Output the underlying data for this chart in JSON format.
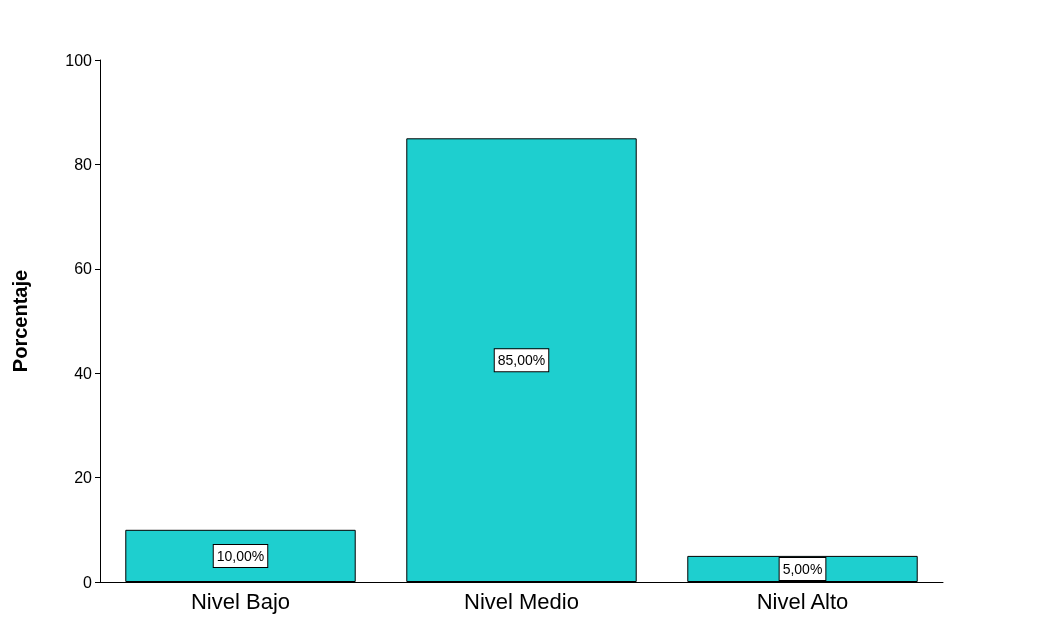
{
  "chart_data": {
    "type": "bar",
    "ylabel": "Porcentaje",
    "categories": [
      "Nivel Bajo",
      "Nivel Medio",
      "Nivel Alto"
    ],
    "values": [
      10,
      85,
      5
    ],
    "value_labels": [
      "10,00%",
      "85,00%",
      "5,00%"
    ],
    "color": "#1ecfcf",
    "ylim": [
      0,
      100
    ],
    "yticks": [
      0,
      20,
      40,
      60,
      80,
      100
    ],
    "grid": false
  }
}
